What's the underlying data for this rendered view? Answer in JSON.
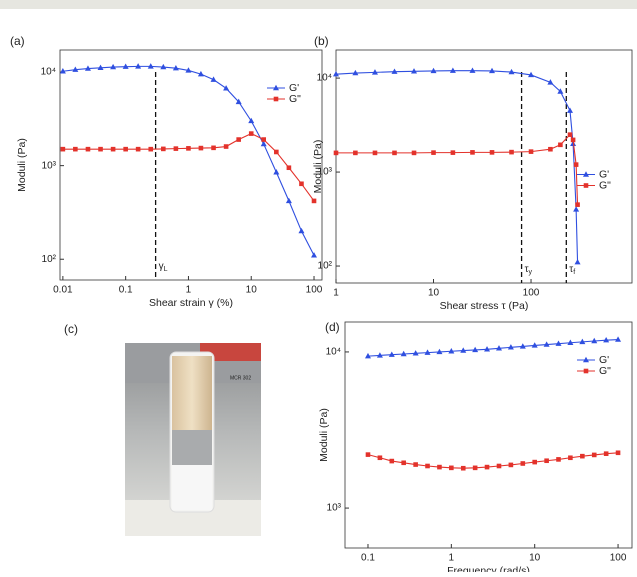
{
  "chart_data": [
    {
      "type": "line",
      "panel": "(a)",
      "xlabel": "Shear strain γ (%)",
      "ylabel": "Moduli (Pa)",
      "xscale": "log",
      "yscale": "log",
      "xlim": [
        0.009,
        134
      ],
      "ylim": [
        60,
        17200
      ],
      "xticks": [
        0.01,
        0.1,
        1,
        10,
        100
      ],
      "yticks": [
        {
          "value": 100,
          "label": "10²"
        },
        {
          "value": 1000,
          "label": "10³"
        },
        {
          "value": 10000,
          "label": "10⁴"
        }
      ],
      "legend": "upper right",
      "x": [
        0.01,
        0.0158,
        0.0251,
        0.0398,
        0.0631,
        0.1,
        0.158,
        0.251,
        0.398,
        0.631,
        1,
        1.58,
        2.51,
        3.98,
        6.31,
        10,
        15.8,
        25.1,
        39.8,
        63.1,
        100
      ],
      "series": [
        {
          "name": "G'",
          "color": "#2f4fe0",
          "marker": "triangle",
          "values": [
            10200,
            10600,
            10900,
            11100,
            11300,
            11400,
            11500,
            11500,
            11300,
            11000,
            10400,
            9500,
            8300,
            6700,
            4800,
            3000,
            1700,
            850,
            420,
            200,
            110
          ]
        },
        {
          "name": "G\"",
          "color": "#e3322b",
          "marker": "square",
          "values": [
            1500,
            1500,
            1500,
            1500,
            1500,
            1500,
            1500,
            1500,
            1510,
            1520,
            1530,
            1540,
            1550,
            1600,
            1900,
            2200,
            1900,
            1400,
            950,
            640,
            420
          ]
        }
      ],
      "vlines": [
        {
          "x": 0.3,
          "label": "γ",
          "sub": "L"
        }
      ]
    },
    {
      "type": "line",
      "panel": "(b)",
      "xlabel": "Shear stress τ (Pa)",
      "ylabel": "Moduli (Pa)",
      "xscale": "log",
      "yscale": "log",
      "xlim": [
        1,
        1085
      ],
      "ylim": [
        66,
        19900
      ],
      "xticks": [
        1,
        10,
        100
      ],
      "yticks": [
        {
          "value": 100,
          "label": "10²"
        },
        {
          "value": 1000,
          "label": "10³"
        },
        {
          "value": 10000,
          "label": "10⁴"
        }
      ],
      "legend": "center right",
      "x": [
        1,
        1.58,
        2.51,
        3.98,
        6.31,
        10,
        15.8,
        25.1,
        39.8,
        63.1,
        100,
        158,
        200,
        251,
        270,
        290,
        300
      ],
      "series": [
        {
          "name": "G'",
          "color": "#2f4fe0",
          "marker": "triangle",
          "values": [
            11000,
            11300,
            11500,
            11700,
            11800,
            11900,
            12000,
            12000,
            11900,
            11600,
            10800,
            9000,
            7200,
            4500,
            2000,
            400,
            110
          ]
        },
        {
          "name": "G\"",
          "color": "#e3322b",
          "marker": "square",
          "values": [
            1600,
            1600,
            1600,
            1600,
            1600,
            1610,
            1610,
            1620,
            1620,
            1630,
            1650,
            1750,
            1950,
            2500,
            2200,
            1200,
            450
          ]
        }
      ],
      "vlines": [
        {
          "x": 80,
          "label": "τ",
          "sub": "y"
        },
        {
          "x": 230,
          "label": "τ",
          "sub": "f"
        }
      ]
    },
    {
      "type": "line",
      "panel": "(d)",
      "xlabel": "Frequency (rad/s)",
      "ylabel": "Moduli (Pa)",
      "xscale": "log",
      "yscale": "log",
      "xlim": [
        0.053,
        147
      ],
      "ylim": [
        555,
        15550
      ],
      "xticks": [
        0.1,
        1,
        10,
        100
      ],
      "yticks": [
        {
          "value": 1000,
          "label": "10³"
        },
        {
          "value": 10000,
          "label": "10⁴"
        }
      ],
      "legend": "upper right",
      "x": [
        0.1,
        0.139,
        0.193,
        0.268,
        0.373,
        0.518,
        0.72,
        1,
        1.39,
        1.93,
        2.68,
        3.73,
        5.18,
        7.2,
        10,
        13.9,
        19.3,
        26.8,
        37.3,
        51.8,
        72,
        100
      ],
      "series": [
        {
          "name": "G'",
          "color": "#2f4fe0",
          "marker": "triangle",
          "values": [
            9400,
            9500,
            9600,
            9700,
            9800,
            9900,
            10000,
            10100,
            10200,
            10300,
            10400,
            10550,
            10700,
            10850,
            11000,
            11150,
            11300,
            11450,
            11600,
            11750,
            11900,
            12000
          ]
        },
        {
          "name": "G\"",
          "color": "#e3322b",
          "marker": "square",
          "values": [
            2200,
            2100,
            2000,
            1950,
            1900,
            1860,
            1830,
            1810,
            1800,
            1810,
            1830,
            1860,
            1890,
            1930,
            1970,
            2010,
            2050,
            2100,
            2150,
            2190,
            2230,
            2260
          ]
        }
      ],
      "vlines": []
    }
  ],
  "photo": {
    "panel": "(c)",
    "device_label": "MCR 302"
  }
}
